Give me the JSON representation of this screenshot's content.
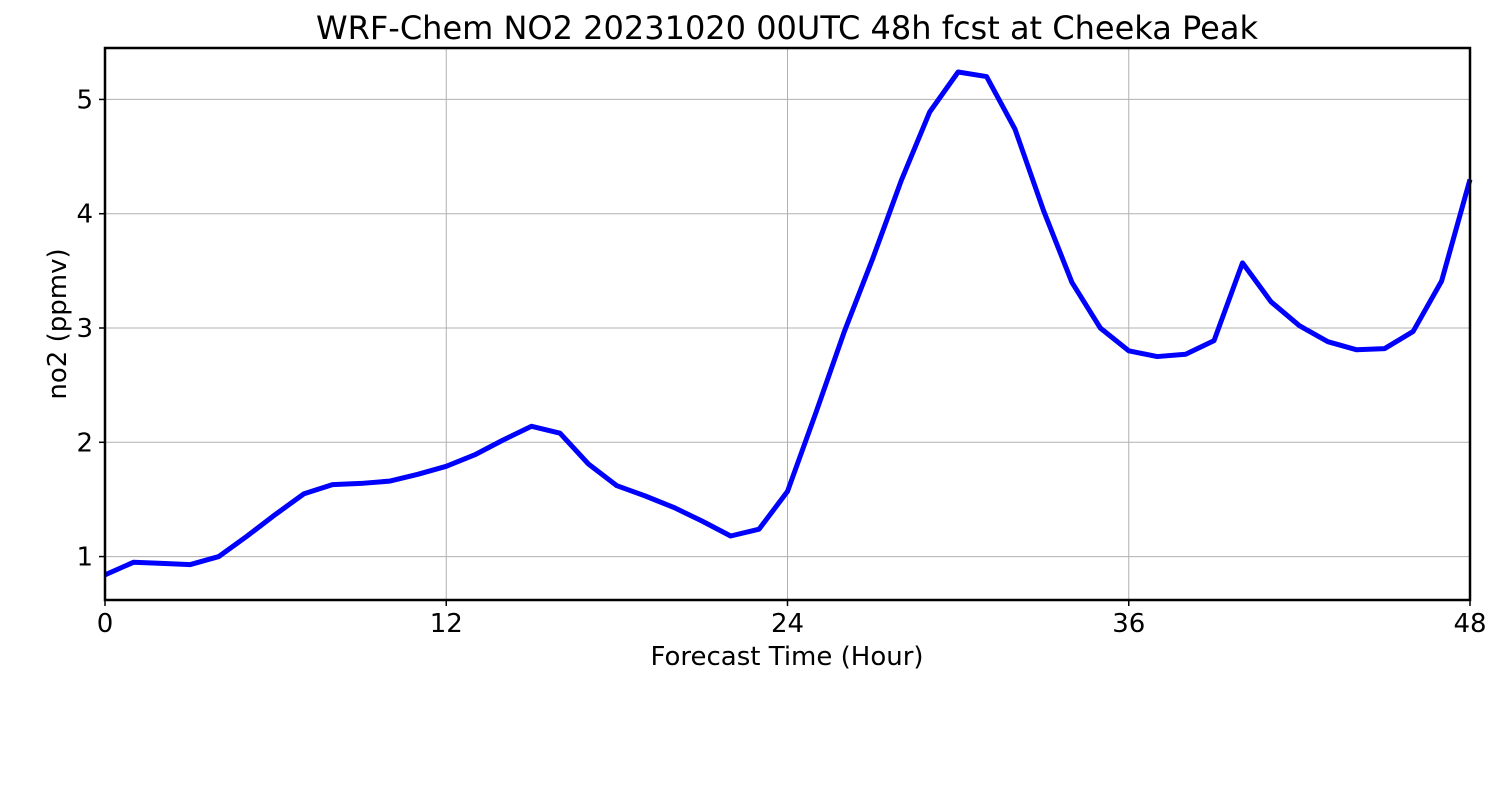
{
  "chart_data": {
    "type": "line",
    "title": "WRF-Chem NO2  20231020 00UTC 48h fcst at Cheeka Peak",
    "xlabel": "Forecast Time (Hour)",
    "ylabel": "no2  (ppmv)",
    "xlim": [
      0,
      48
    ],
    "ylim": [
      0.62,
      5.45
    ],
    "xticks": [
      0,
      12,
      24,
      36,
      48
    ],
    "yticks": [
      1,
      2,
      3,
      4,
      5
    ],
    "grid": true,
    "colors": {
      "series": "#0000ff",
      "grid": "#b0b0b0",
      "frame": "#000000"
    },
    "series": [
      {
        "x": [
          0,
          1,
          2,
          3,
          4,
          5,
          6,
          7,
          8,
          9,
          10,
          11,
          12,
          13,
          14,
          15,
          16,
          17,
          18,
          19,
          20,
          21,
          22,
          23,
          24,
          25,
          26,
          27,
          28,
          29,
          30,
          31,
          32,
          33,
          34,
          35,
          36,
          37,
          38,
          39,
          40,
          41,
          42,
          43,
          44,
          45,
          46,
          47,
          48
        ],
        "values": [
          0.84,
          0.95,
          0.94,
          0.93,
          1.0,
          1.18,
          1.37,
          1.55,
          1.63,
          1.64,
          1.66,
          1.72,
          1.79,
          1.89,
          2.02,
          2.14,
          2.08,
          1.81,
          1.62,
          1.53,
          1.43,
          1.31,
          1.18,
          1.24,
          1.57,
          2.26,
          2.97,
          3.61,
          4.29,
          4.89,
          5.24,
          5.2,
          4.74,
          4.03,
          3.4,
          3.0,
          2.8,
          2.75,
          2.77,
          2.89,
          3.57,
          3.23,
          3.02,
          2.88,
          2.81,
          2.82,
          2.97,
          3.41,
          4.3
        ]
      }
    ]
  }
}
